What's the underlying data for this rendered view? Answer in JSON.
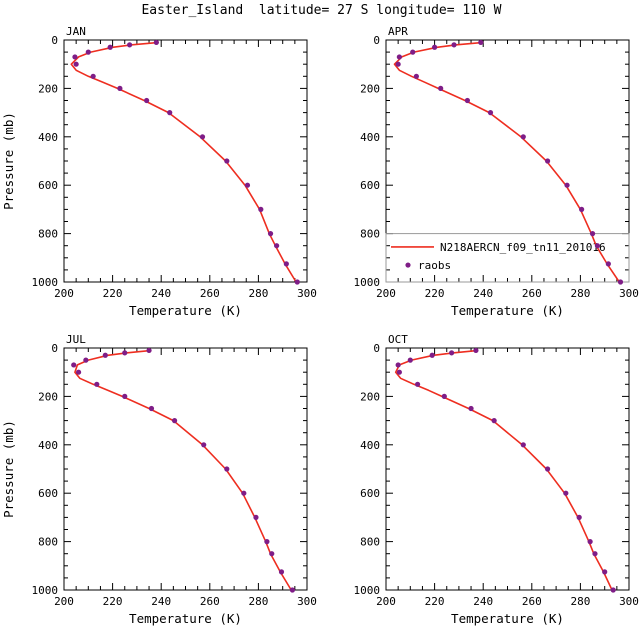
{
  "title": "Easter_Island  latitude= 27 S longitude= 110 W",
  "colors": {
    "model_line": "#ee2e20",
    "raobs_dot": "#7f1d87",
    "axis": "#000000",
    "legend_border": "#9a9a9a"
  },
  "legend": {
    "model_label": "N218AERCN_f09_tn11_201016",
    "raobs_label": "raobs"
  },
  "axes": {
    "xlabel": "Temperature (K)",
    "ylabel": "Pressure (mb)",
    "xlim": [
      200,
      300
    ],
    "ylim": [
      0,
      1000
    ],
    "xticks": [
      200,
      220,
      240,
      260,
      280,
      300
    ],
    "yticks": [
      0,
      200,
      400,
      600,
      800,
      1000
    ],
    "x_minor_step": 5,
    "y_minor_step": 50,
    "y_inverted_down": true
  },
  "chart_data": [
    {
      "type": "line",
      "month": "JAN",
      "show_legend": false,
      "series": [
        {
          "name": "N218AERCN_f09_tn11_201016",
          "role": "model",
          "pressure": [
            10,
            20,
            30,
            50,
            70,
            100,
            125,
            150,
            175,
            200,
            250,
            300,
            400,
            500,
            600,
            700,
            800,
            850,
            925,
            1000
          ],
          "temperature": [
            239,
            228,
            220,
            211,
            206,
            203,
            205,
            210,
            216,
            222,
            233,
            243,
            256,
            266.5,
            274.5,
            280.5,
            284.5,
            287,
            291,
            295.5
          ]
        },
        {
          "name": "raobs",
          "role": "raobs",
          "pressure": [
            10,
            20,
            30,
            50,
            70,
            100,
            150,
            200,
            250,
            300,
            400,
            500,
            600,
            700,
            800,
            850,
            925,
            1000
          ],
          "temperature": [
            238,
            227,
            219,
            210,
            204.5,
            205,
            212,
            223,
            234,
            243.5,
            257,
            267,
            275.5,
            281,
            285,
            287.5,
            291.5,
            296
          ]
        }
      ]
    },
    {
      "type": "line",
      "month": "APR",
      "show_legend": true,
      "series": [
        {
          "name": "N218AERCN_f09_tn11_201016",
          "role": "model",
          "pressure": [
            10,
            20,
            30,
            50,
            70,
            100,
            125,
            150,
            175,
            200,
            250,
            300,
            400,
            500,
            600,
            700,
            800,
            850,
            925,
            1000
          ],
          "temperature": [
            240,
            229,
            221,
            211.5,
            206.5,
            203.5,
            205.5,
            210.5,
            216,
            221.5,
            232.5,
            242.5,
            255.5,
            266,
            274,
            280,
            284.5,
            286.5,
            291,
            296
          ]
        },
        {
          "name": "raobs",
          "role": "raobs",
          "pressure": [
            10,
            20,
            30,
            50,
            70,
            100,
            150,
            200,
            250,
            300,
            400,
            500,
            600,
            700,
            800,
            850,
            925,
            1000
          ],
          "temperature": [
            239,
            228,
            220,
            211,
            205.5,
            205,
            212.5,
            222.5,
            233.5,
            243,
            256.5,
            266.5,
            274.5,
            280.5,
            285,
            287,
            291.5,
            296.5
          ]
        }
      ]
    },
    {
      "type": "line",
      "month": "JUL",
      "show_legend": false,
      "series": [
        {
          "name": "N218AERCN_f09_tn11_201016",
          "role": "model",
          "pressure": [
            10,
            20,
            30,
            50,
            70,
            100,
            125,
            150,
            175,
            200,
            250,
            300,
            400,
            500,
            600,
            700,
            800,
            850,
            925,
            1000
          ],
          "temperature": [
            236,
            226,
            218,
            210,
            205.5,
            204.5,
            206.5,
            212,
            218,
            224,
            235,
            245,
            257,
            266.5,
            273.5,
            278.5,
            283,
            285,
            289,
            293.5
          ]
        },
        {
          "name": "raobs",
          "role": "raobs",
          "pressure": [
            10,
            20,
            30,
            50,
            70,
            100,
            150,
            200,
            250,
            300,
            400,
            500,
            600,
            700,
            800,
            850,
            925,
            1000
          ],
          "temperature": [
            235,
            225,
            217,
            209,
            204,
            206,
            213.5,
            225,
            236,
            245.5,
            257.5,
            267,
            274,
            279,
            283.5,
            285.5,
            289.5,
            294
          ]
        }
      ]
    },
    {
      "type": "line",
      "month": "OCT",
      "show_legend": false,
      "series": [
        {
          "name": "N218AERCN_f09_tn11_201016",
          "role": "model",
          "pressure": [
            10,
            20,
            30,
            50,
            70,
            100,
            125,
            150,
            175,
            200,
            250,
            300,
            400,
            500,
            600,
            700,
            800,
            850,
            925,
            1000
          ],
          "temperature": [
            238,
            228,
            219.5,
            210.5,
            205.5,
            204,
            206,
            211.5,
            217.5,
            223,
            234,
            244,
            256,
            266,
            273.5,
            279,
            283.5,
            285.5,
            289.5,
            293
          ]
        },
        {
          "name": "raobs",
          "role": "raobs",
          "pressure": [
            10,
            20,
            30,
            50,
            70,
            100,
            150,
            200,
            250,
            300,
            400,
            500,
            600,
            700,
            800,
            850,
            925,
            1000
          ],
          "temperature": [
            237,
            227,
            219,
            210,
            205,
            205.5,
            213,
            224,
            235,
            244.5,
            256.5,
            266.5,
            274,
            279.5,
            284,
            286,
            290,
            293.5
          ]
        }
      ]
    }
  ]
}
